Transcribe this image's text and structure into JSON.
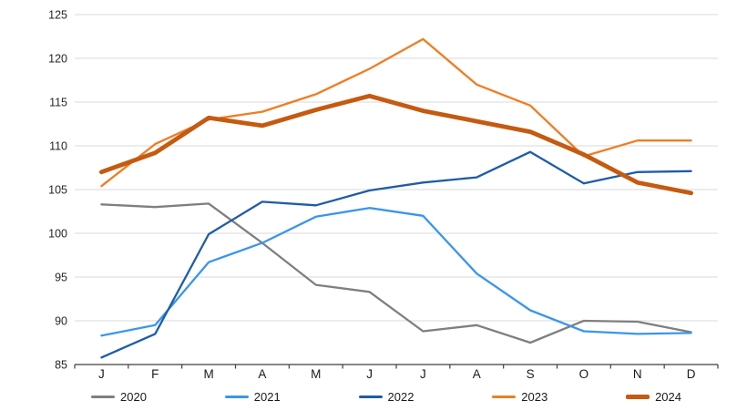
{
  "chart_data": {
    "type": "line",
    "title": "",
    "xlabel": "",
    "ylabel": "",
    "categories": [
      "J",
      "F",
      "M",
      "A",
      "M",
      "J",
      "J",
      "A",
      "S",
      "O",
      "N",
      "D"
    ],
    "y_axis": {
      "min": 85,
      "max": 125,
      "step": 5,
      "ticks": [
        85,
        90,
        95,
        100,
        105,
        110,
        115,
        120,
        125
      ]
    },
    "grid": true,
    "legend_position": "bottom",
    "series": [
      {
        "name": "2020",
        "color": "#7F7F7F",
        "width": 2.3,
        "values": [
          103.3,
          103.0,
          103.4,
          98.9,
          94.1,
          93.3,
          88.8,
          89.5,
          87.5,
          90.0,
          89.9,
          88.7
        ]
      },
      {
        "name": "2021",
        "color": "#3A96ED",
        "width": 2.3,
        "values": [
          88.3,
          89.5,
          96.7,
          98.9,
          101.9,
          102.9,
          102.0,
          95.4,
          91.2,
          88.8,
          88.5,
          88.6
        ]
      },
      {
        "name": "2022",
        "color": "#1F5CA8",
        "width": 2.3,
        "values": [
          85.8,
          88.5,
          99.9,
          103.6,
          103.2,
          104.9,
          105.8,
          106.4,
          109.3,
          105.7,
          107.0,
          107.1
        ]
      },
      {
        "name": "2023",
        "color": "#F07D22",
        "width": 2.3,
        "values": [
          105.4,
          110.2,
          113.0,
          113.9,
          115.9,
          118.8,
          122.2,
          117.0,
          114.6,
          108.8,
          110.6,
          110.6
        ]
      },
      {
        "name": "2024",
        "color": "#C55A11",
        "width": 4.8,
        "values": [
          107.0,
          109.2,
          113.2,
          112.3,
          114.1,
          115.7,
          114.0,
          112.8,
          111.6,
          109.0,
          105.8,
          104.6
        ]
      }
    ]
  },
  "colors": {
    "background": "#FFFFFF",
    "gridline": "#D9D9D9",
    "axis": "#3f3f3f",
    "tick_label": "#262626"
  }
}
